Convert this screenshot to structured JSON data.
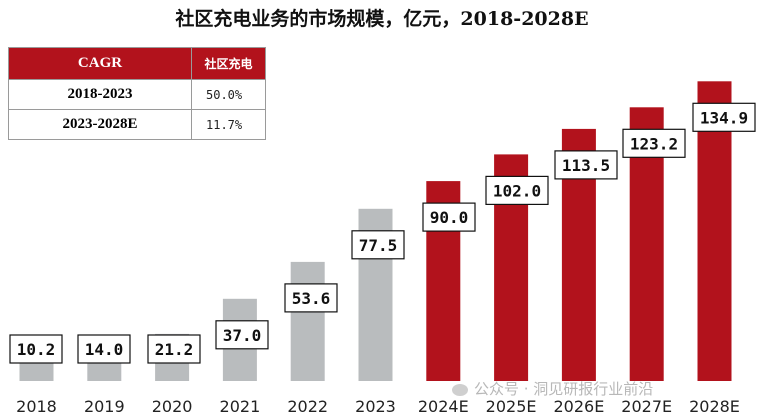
{
  "chart_data": {
    "type": "bar",
    "title": "社区充电业务的市场规模，亿元，2018-2028E",
    "xlabel": "",
    "ylabel": "",
    "categories": [
      "2018",
      "2019",
      "2020",
      "2021",
      "2022",
      "2023",
      "2024E",
      "2025E",
      "2026E",
      "2027E",
      "2028E"
    ],
    "values": [
      10.2,
      14.0,
      21.2,
      37.0,
      53.6,
      77.5,
      90.0,
      102.0,
      113.5,
      123.2,
      134.9
    ],
    "value_labels": [
      "10.2",
      "14.0",
      "21.2",
      "37.0",
      "53.6",
      "77.5",
      "90.0",
      "102.0",
      "113.5",
      "123.2",
      "134.9"
    ],
    "ylim": [
      0,
      140
    ],
    "grid": false,
    "colors": {
      "actual": "#b9bcbe",
      "forecast": "#b2121c"
    },
    "forecast_start_index": 6
  },
  "cagr_table": {
    "header": {
      "label": "CAGR",
      "series": "社区充电"
    },
    "rows": [
      {
        "period": "2018-2023",
        "rate": "50.0%"
      },
      {
        "period": "2023-2028E",
        "rate": "11.7%"
      }
    ]
  },
  "watermark": {
    "text": "公众号 · 洞见研报行业前沿"
  }
}
